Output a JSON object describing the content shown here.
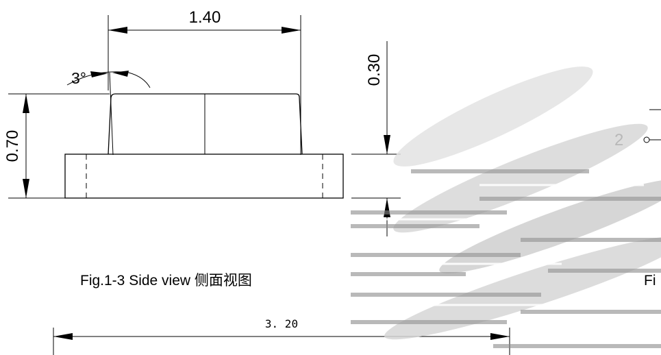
{
  "dimensions": {
    "width_top": "1.40",
    "height_total": "0.70",
    "height_base": "0.30",
    "angle": "3°",
    "width_bottom": "3. 20"
  },
  "captions": {
    "side_view": "Fig.1-3 Side view  侧面视图",
    "partial_right": "Fi"
  },
  "pin_label": "2",
  "colors": {
    "line": "#000000",
    "background": "#ffffff",
    "artifact": "#9a9a9a"
  }
}
